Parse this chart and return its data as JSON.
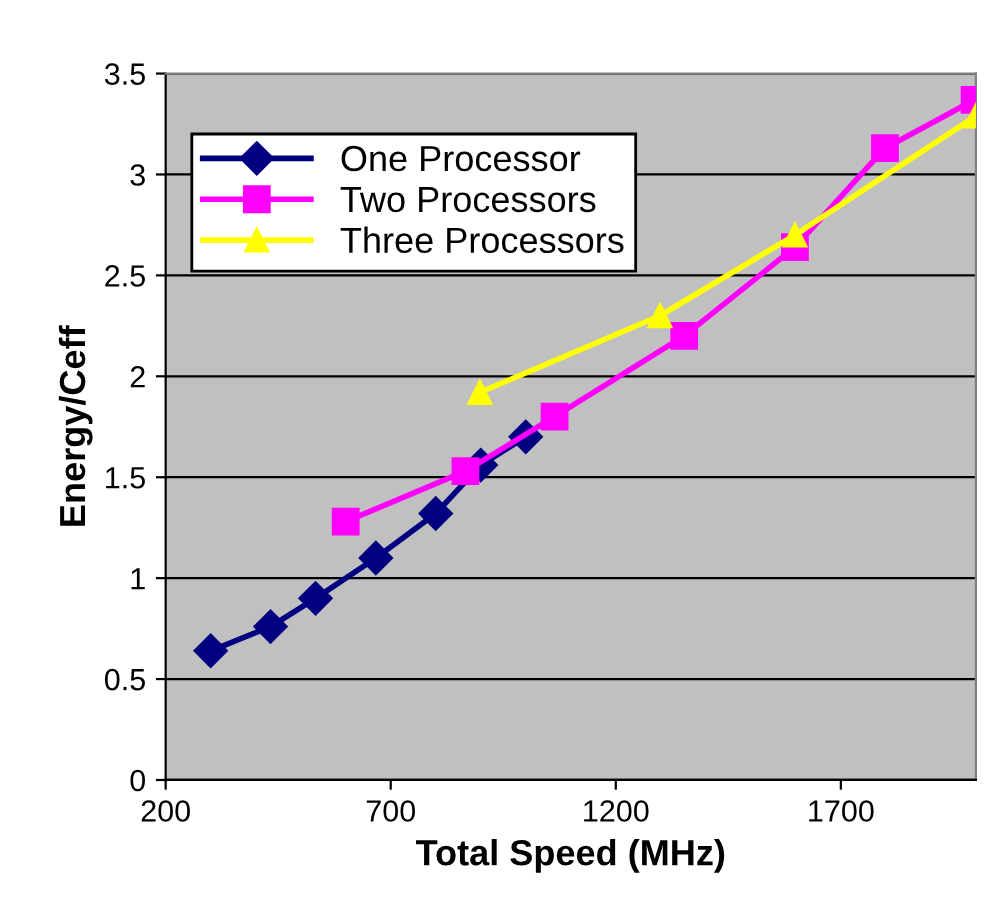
{
  "chart_data": {
    "type": "line",
    "xlabel": "Total Speed (MHz)",
    "ylabel": "Energy/Ceff",
    "xlim": [
      200,
      2000
    ],
    "xticks": [
      200,
      700,
      1200,
      1700
    ],
    "ylim": [
      0,
      3.5
    ],
    "yticks": [
      0,
      0.5,
      1,
      1.5,
      2,
      2.5,
      3,
      3.5
    ],
    "grid": "y",
    "legend": "top left",
    "series": [
      {
        "name": "One Processor",
        "color": "#000080",
        "marker": "diamond",
        "x": [
          300,
          433,
          533,
          667,
          800,
          900,
          1000
        ],
        "values": [
          0.64,
          0.76,
          0.9,
          1.1,
          1.32,
          1.56,
          1.7
        ]
      },
      {
        "name": "Two Processors",
        "color": "#ff00ff",
        "marker": "square",
        "x": [
          600,
          866,
          1064,
          1352,
          1598,
          1798,
          1997
        ],
        "values": [
          1.28,
          1.53,
          1.8,
          2.2,
          2.64,
          3.13,
          3.37
        ]
      },
      {
        "name": "Three Processors",
        "color": "#ffff00",
        "marker": "triangle",
        "x": [
          898,
          1298,
          1598,
          2000
        ],
        "values": [
          1.92,
          2.3,
          2.7,
          3.29
        ]
      }
    ]
  }
}
